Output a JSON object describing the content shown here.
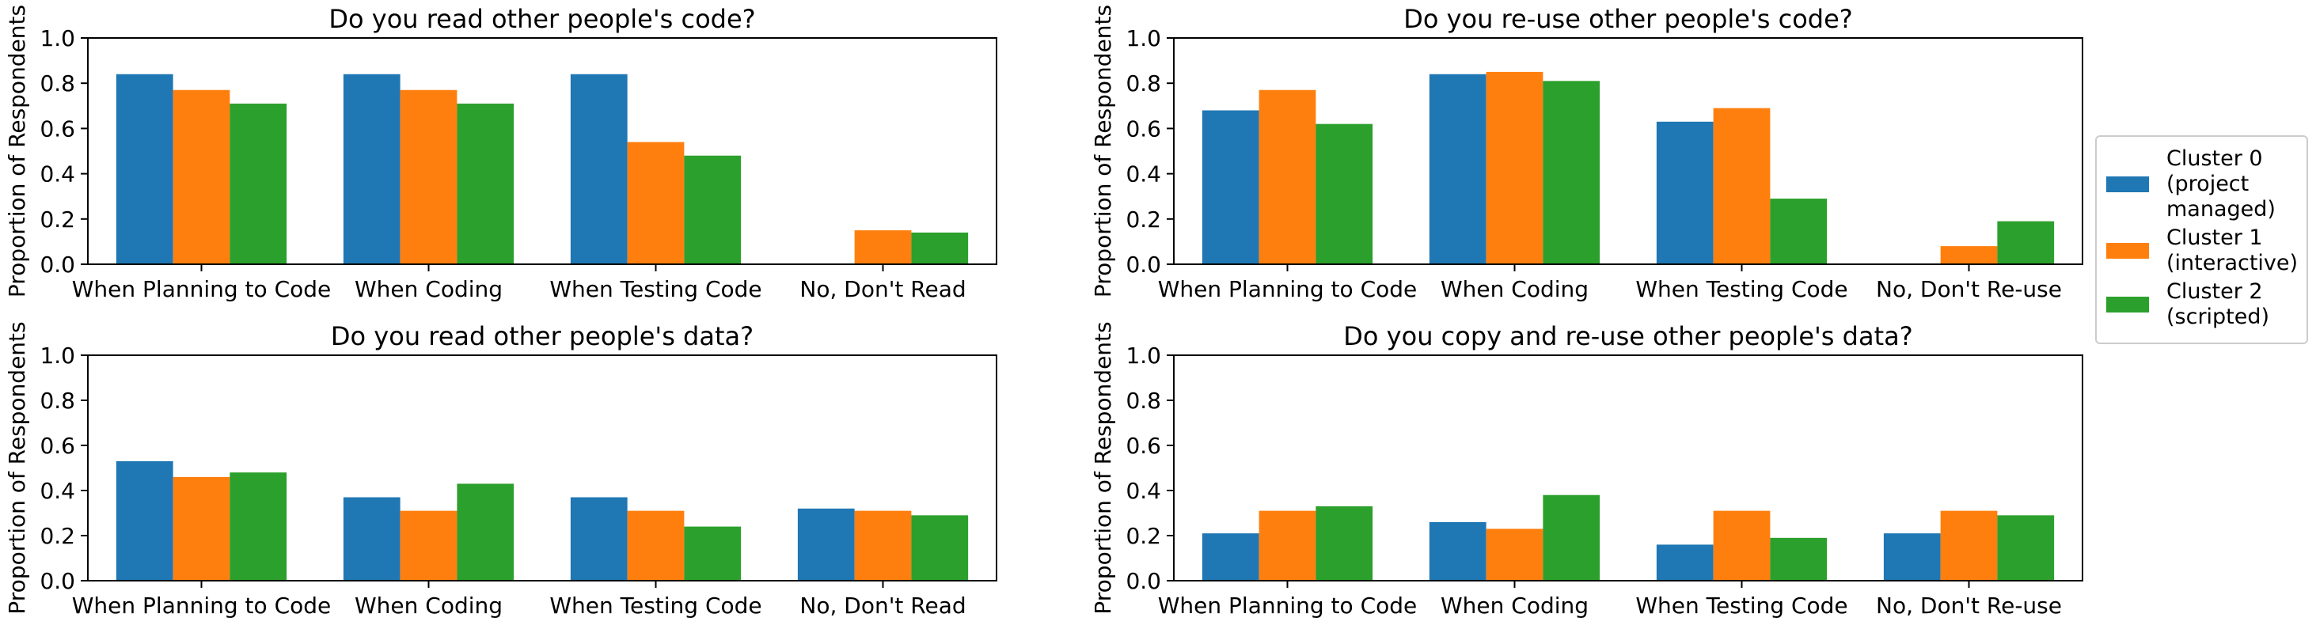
{
  "chart_data": [
    {
      "type": "bar",
      "title": "Do you read other people's code?",
      "ylabel": "Proportion of Respondents",
      "xlabel": "",
      "ylim": [
        0,
        1.0
      ],
      "yticks": [
        "0.0",
        "0.2",
        "0.4",
        "0.6",
        "0.8",
        "1.0"
      ],
      "categories": [
        "When Planning to Code",
        "When Coding",
        "When Testing Code",
        "No, Don't Read"
      ],
      "series": [
        {
          "name": "Cluster 0 (project managed)",
          "values": [
            0.84,
            0.84,
            0.84,
            0.0
          ]
        },
        {
          "name": "Cluster 1 (interactive)",
          "values": [
            0.77,
            0.77,
            0.54,
            0.15
          ]
        },
        {
          "name": "Cluster 2 (scripted)",
          "values": [
            0.71,
            0.71,
            0.48,
            0.14
          ]
        }
      ]
    },
    {
      "type": "bar",
      "title": "Do you re-use other people's code?",
      "ylabel": "Proportion of Respondents",
      "xlabel": "",
      "ylim": [
        0,
        1.0
      ],
      "yticks": [
        "0.0",
        "0.2",
        "0.4",
        "0.6",
        "0.8",
        "1.0"
      ],
      "categories": [
        "When Planning to Code",
        "When Coding",
        "When Testing Code",
        "No, Don't Re-use"
      ],
      "series": [
        {
          "name": "Cluster 0 (project managed)",
          "values": [
            0.68,
            0.84,
            0.63,
            0.0
          ]
        },
        {
          "name": "Cluster 1 (interactive)",
          "values": [
            0.77,
            0.85,
            0.69,
            0.08
          ]
        },
        {
          "name": "Cluster 2 (scripted)",
          "values": [
            0.62,
            0.81,
            0.29,
            0.19
          ]
        }
      ]
    },
    {
      "type": "bar",
      "title": "Do you read other people's data?",
      "ylabel": "Proportion of Respondents",
      "xlabel": "",
      "ylim": [
        0,
        1.0
      ],
      "yticks": [
        "0.0",
        "0.2",
        "0.4",
        "0.6",
        "0.8",
        "1.0"
      ],
      "categories": [
        "When Planning to Code",
        "When Coding",
        "When Testing Code",
        "No, Don't Read"
      ],
      "series": [
        {
          "name": "Cluster 0 (project managed)",
          "values": [
            0.53,
            0.37,
            0.37,
            0.32
          ]
        },
        {
          "name": "Cluster 1 (interactive)",
          "values": [
            0.46,
            0.31,
            0.31,
            0.31
          ]
        },
        {
          "name": "Cluster 2 (scripted)",
          "values": [
            0.48,
            0.43,
            0.24,
            0.29
          ]
        }
      ]
    },
    {
      "type": "bar",
      "title": "Do you copy and re-use other people's data?",
      "ylabel": "Proportion of Respondents",
      "xlabel": "",
      "ylim": [
        0,
        1.0
      ],
      "yticks": [
        "0.0",
        "0.2",
        "0.4",
        "0.6",
        "0.8",
        "1.0"
      ],
      "categories": [
        "When Planning to Code",
        "When Coding",
        "When Testing Code",
        "No, Don't Re-use"
      ],
      "series": [
        {
          "name": "Cluster 0 (project managed)",
          "values": [
            0.21,
            0.26,
            0.16,
            0.21
          ]
        },
        {
          "name": "Cluster 1 (interactive)",
          "values": [
            0.31,
            0.23,
            0.31,
            0.31
          ]
        },
        {
          "name": "Cluster 2 (scripted)",
          "values": [
            0.33,
            0.38,
            0.19,
            0.29
          ]
        }
      ]
    }
  ],
  "legend": {
    "items": [
      {
        "label": "Cluster 0\n(project\nmanaged)",
        "color": "#1f77b4"
      },
      {
        "label": "Cluster 1\n(interactive)",
        "color": "#ff7f0e"
      },
      {
        "label": "Cluster 2\n(scripted)",
        "color": "#2ca02c"
      }
    ]
  },
  "colors": [
    "#1f77b4",
    "#ff7f0e",
    "#2ca02c"
  ]
}
